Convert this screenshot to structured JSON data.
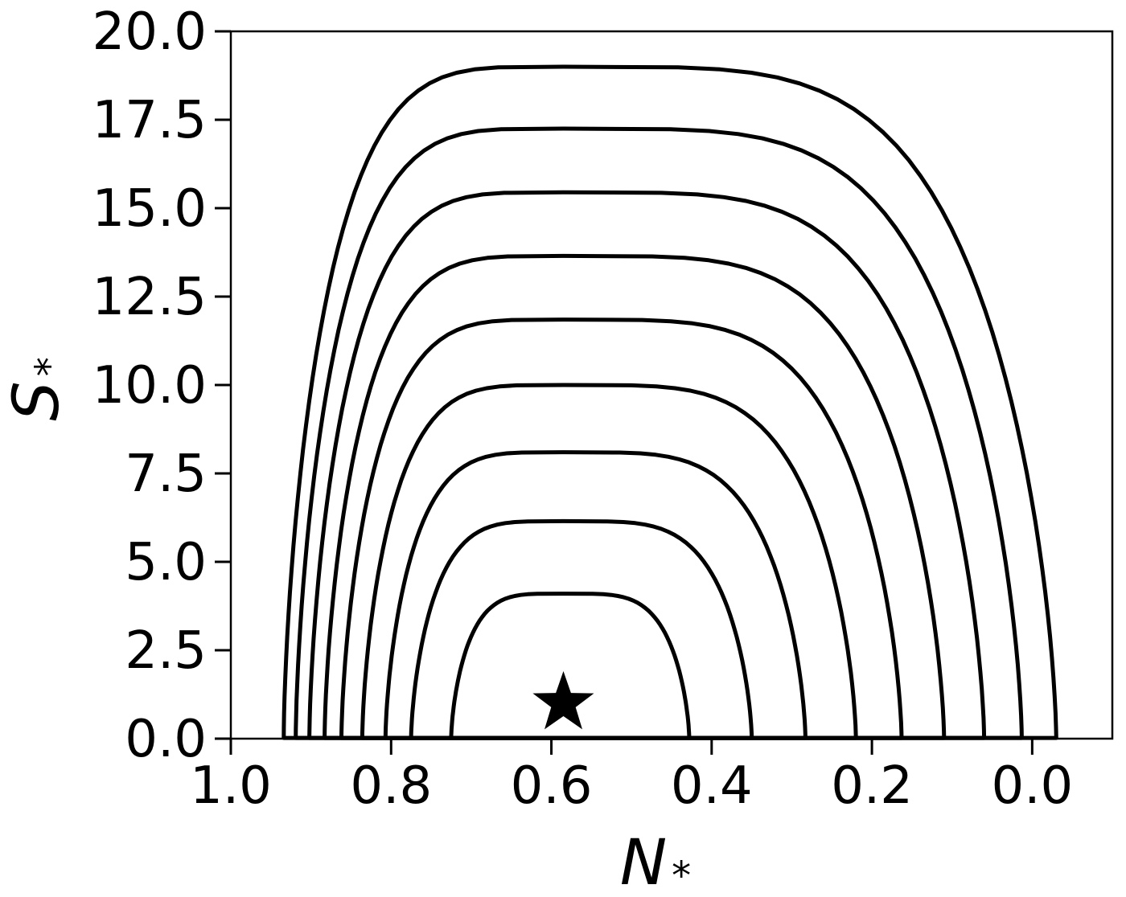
{
  "chart_data": {
    "type": "line",
    "xlabel": "N",
    "xlabel_sub": "*",
    "ylabel": "S",
    "ylabel_sub": "*",
    "xlim": [
      1.0,
      -0.1
    ],
    "ylim": [
      0.0,
      20.0
    ],
    "x_reversed": true,
    "xticks": [
      1.0,
      0.8,
      0.6,
      0.4,
      0.2,
      0.0
    ],
    "xtick_labels": [
      "1.0",
      "0.8",
      "0.6",
      "0.4",
      "0.2",
      "0.0"
    ],
    "yticks": [
      0.0,
      2.5,
      5.0,
      7.5,
      10.0,
      12.5,
      15.0,
      17.5,
      20.0
    ],
    "ytick_labels": [
      "0.0",
      "2.5",
      "5.0",
      "7.5",
      "10.0",
      "12.5",
      "15.0",
      "17.5",
      "20.0"
    ],
    "grid": false,
    "legend": "none",
    "line_color": "#000000",
    "equilibrium": {
      "x": 0.585,
      "y": 1.0,
      "marker": "star"
    },
    "series": [
      {
        "x_min": 0.428,
        "x_max": 0.725,
        "y_max": 4.1
      },
      {
        "x_min": 0.35,
        "x_max": 0.775,
        "y_max": 6.15
      },
      {
        "x_min": 0.283,
        "x_max": 0.807,
        "y_max": 8.1
      },
      {
        "x_min": 0.22,
        "x_max": 0.836,
        "y_max": 10.0
      },
      {
        "x_min": 0.163,
        "x_max": 0.862,
        "y_max": 11.85
      },
      {
        "x_min": 0.11,
        "x_max": 0.883,
        "y_max": 13.65
      },
      {
        "x_min": 0.06,
        "x_max": 0.902,
        "y_max": 15.45
      },
      {
        "x_min": 0.013,
        "x_max": 0.919,
        "y_max": 17.25
      },
      {
        "x_min": -0.03,
        "x_max": 0.934,
        "y_max": 19.0
      }
    ]
  }
}
